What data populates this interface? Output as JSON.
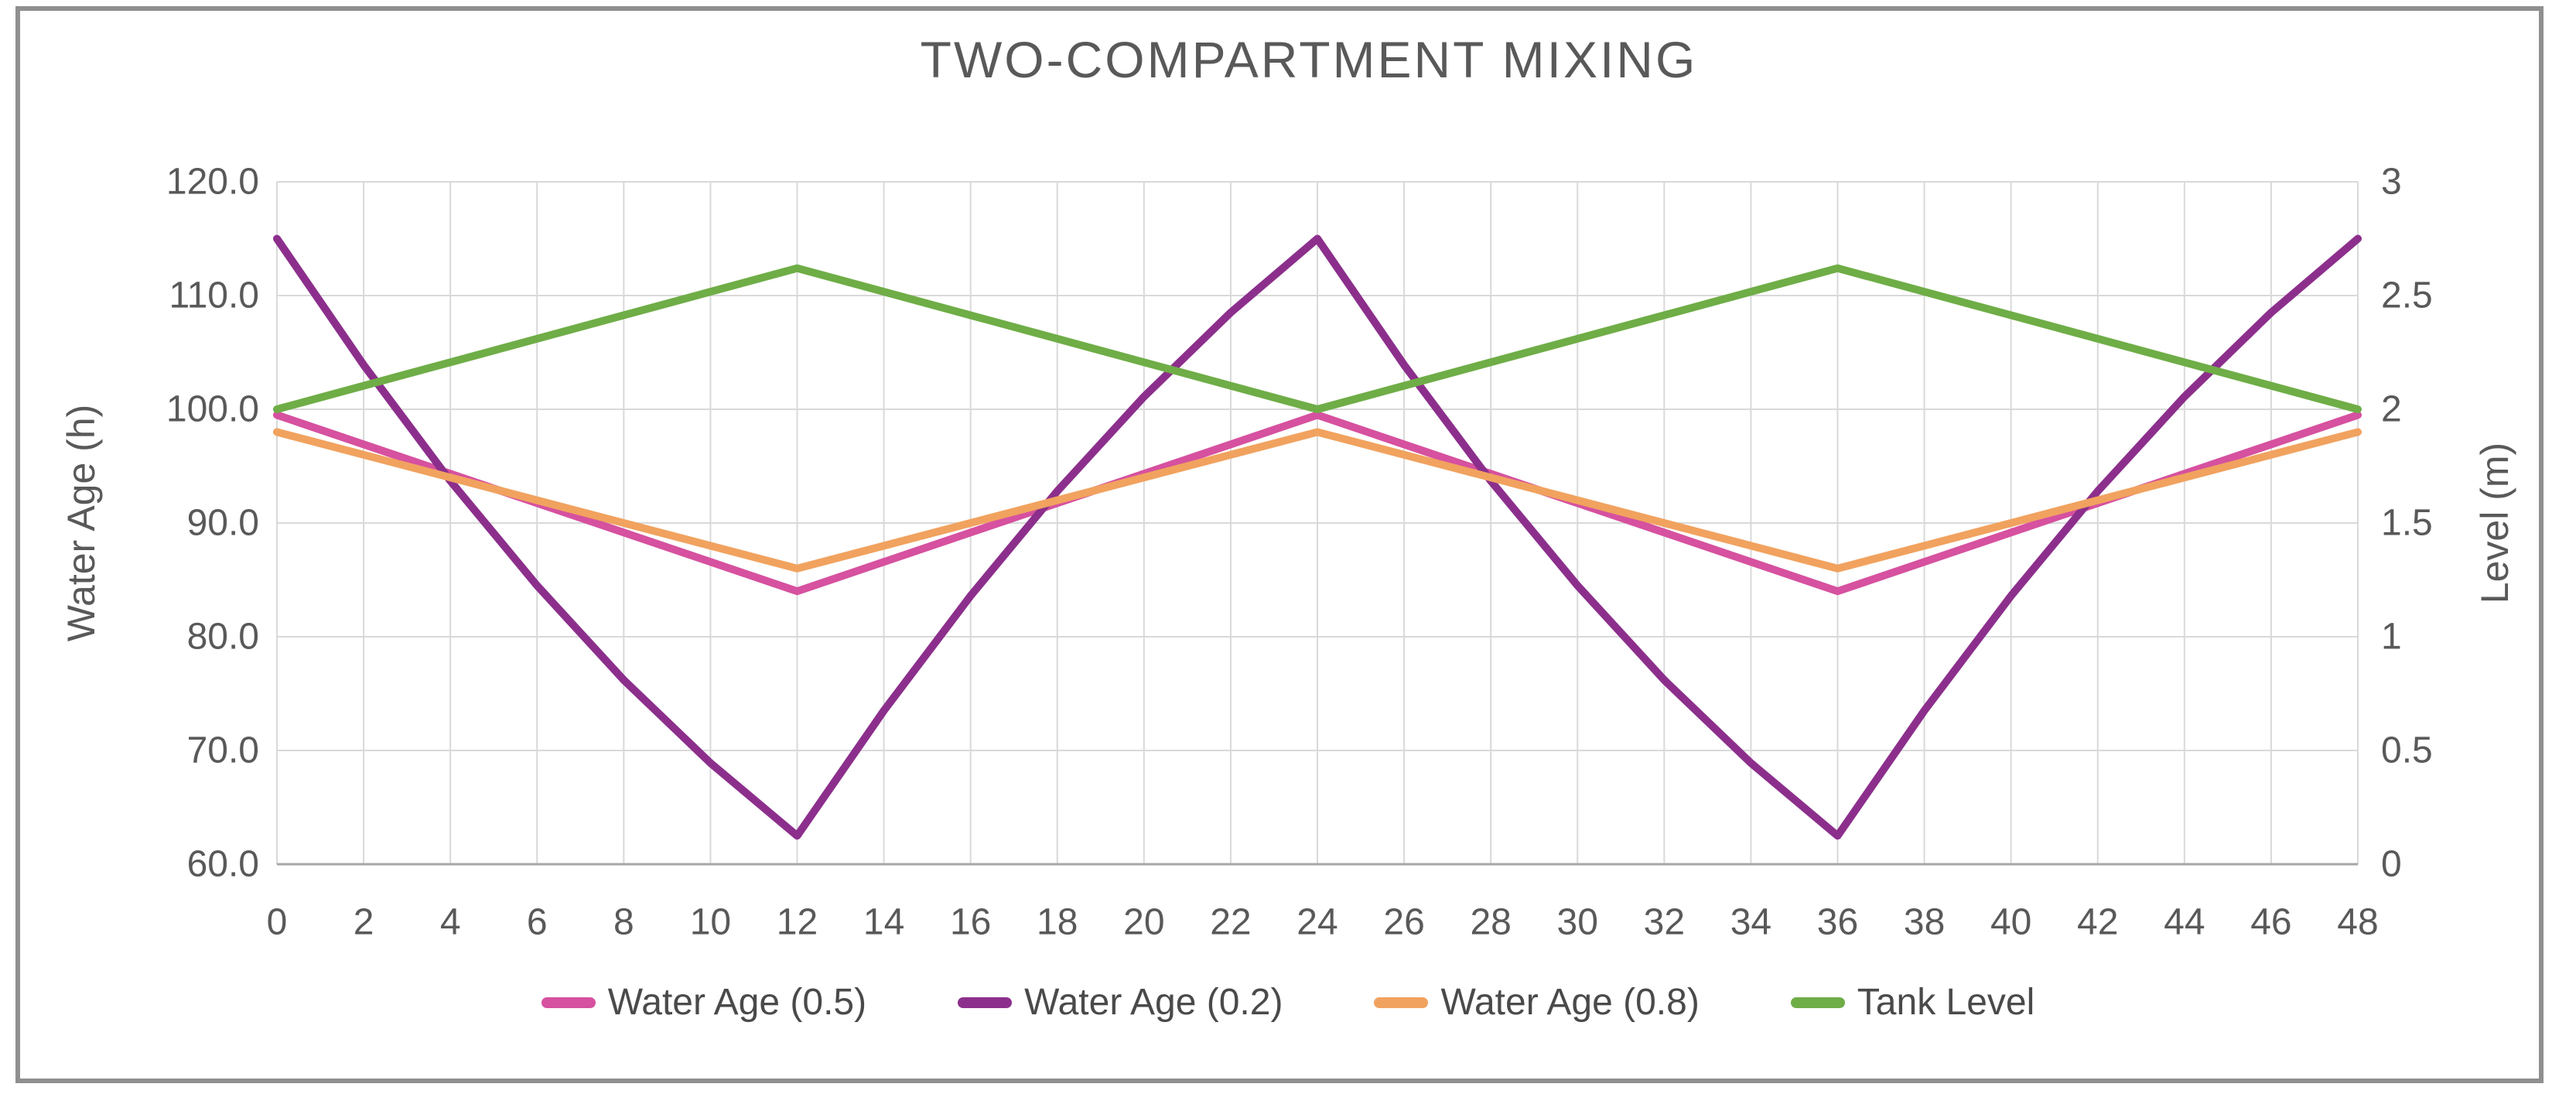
{
  "frame": {
    "border_color": "#8f8f8f",
    "background": "#ffffff"
  },
  "chart_data": {
    "type": "line",
    "title": "TWO-COMPARTMENT MIXING",
    "xlabel": "",
    "grid": true,
    "legend_position": "bottom",
    "text_color": "#595959",
    "legend_text_color": "#4a4a4a",
    "grid_color": "#d9d9d9",
    "axis_line_color": "#a6a6a6",
    "x_axis": {
      "range": [
        0,
        48
      ],
      "tick_interval": 2,
      "tick_labels": [
        "0",
        "2",
        "4",
        "6",
        "8",
        "10",
        "12",
        "14",
        "16",
        "18",
        "20",
        "22",
        "24",
        "26",
        "28",
        "30",
        "32",
        "34",
        "36",
        "38",
        "40",
        "42",
        "44",
        "46",
        "48"
      ]
    },
    "left_axis": {
      "title": "Water Age (h)",
      "range": [
        60,
        120
      ],
      "tick_interval": 10,
      "tick_labels": [
        "120.0",
        "110.0",
        "100.0",
        "90.0",
        "80.0",
        "70.0",
        "60.0"
      ]
    },
    "right_axis": {
      "title": "Level (m)",
      "range": [
        0,
        3
      ],
      "tick_interval": 0.5,
      "tick_labels": [
        "3",
        "2.5",
        "2",
        "1.5",
        "1",
        "0.5",
        "0"
      ]
    },
    "series": [
      {
        "name": "Water Age (0.5)",
        "color": "#d6519f",
        "axis": "left",
        "x": [
          0,
          12,
          24,
          36,
          48
        ],
        "y": [
          99.5,
          84.0,
          99.5,
          84.0,
          99.5
        ]
      },
      {
        "name": "Water Age (0.2)",
        "color": "#8c2f8c",
        "axis": "left",
        "x": [
          0,
          2,
          4,
          6,
          8,
          10,
          12,
          14,
          16,
          18,
          20,
          22,
          24,
          26,
          28,
          30,
          32,
          34,
          36,
          38,
          40,
          42,
          44,
          46,
          48
        ],
        "y": [
          115.0,
          103.9,
          93.7,
          84.5,
          76.2,
          68.9,
          62.5,
          73.5,
          83.6,
          92.8,
          101.1,
          108.5,
          115.0,
          103.9,
          93.7,
          84.5,
          76.2,
          68.9,
          62.5,
          73.5,
          83.6,
          92.8,
          101.1,
          108.5,
          115.0
        ]
      },
      {
        "name": "Water Age (0.8)",
        "color": "#f1a25f",
        "axis": "left",
        "x": [
          0,
          12,
          24,
          36,
          48
        ],
        "y": [
          98.0,
          86.0,
          98.0,
          86.0,
          98.0
        ]
      },
      {
        "name": "Tank Level",
        "color": "#6fad47",
        "axis": "right",
        "x": [
          0,
          12,
          24,
          36,
          48
        ],
        "y": [
          2.0,
          2.62,
          2.0,
          2.62,
          2.0
        ]
      }
    ]
  }
}
